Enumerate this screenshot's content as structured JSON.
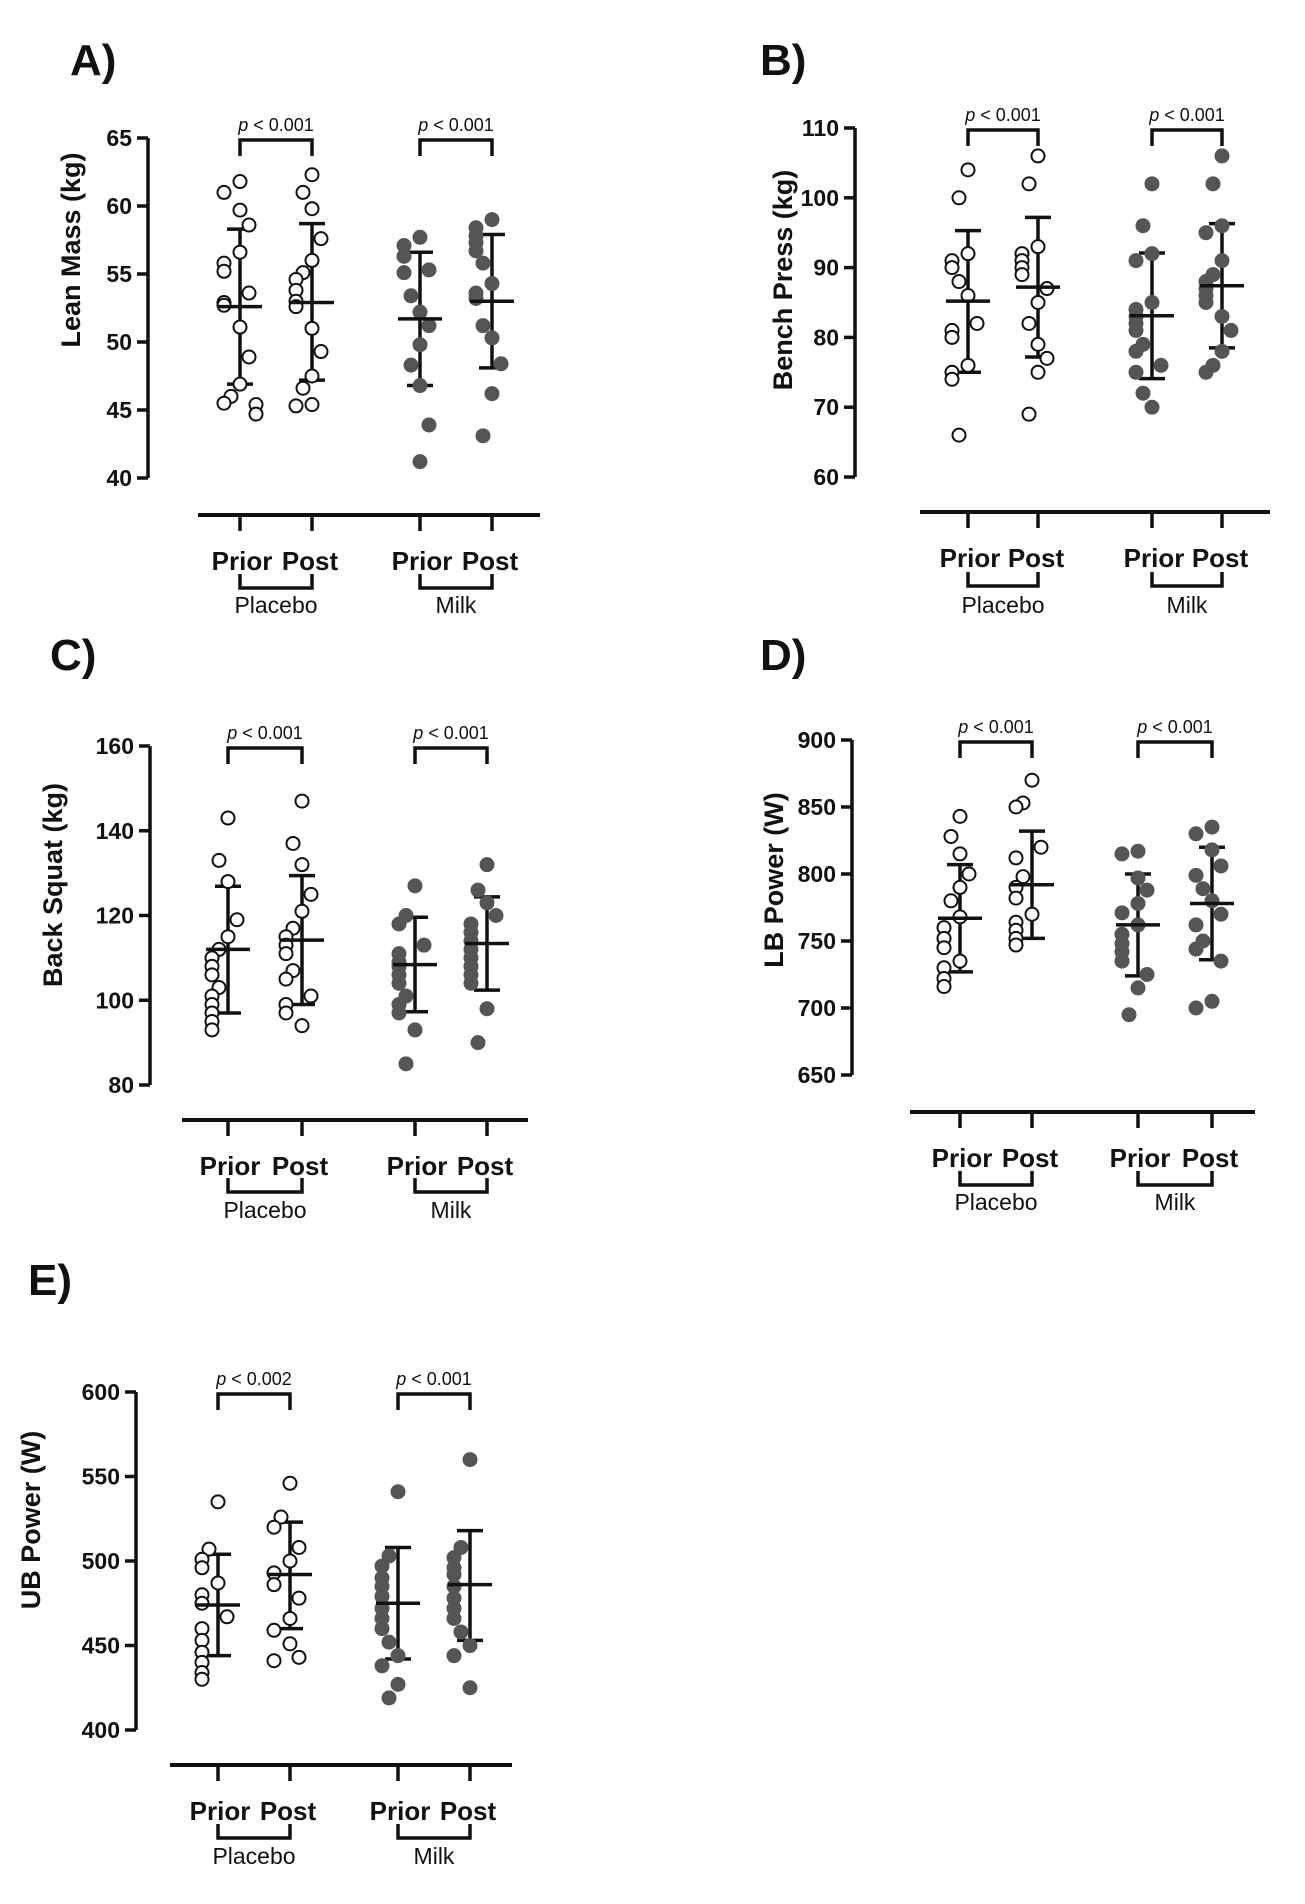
{
  "figure": {
    "condition_labels": [
      "Prior",
      "Post"
    ],
    "treatment_labels": [
      "Placebo",
      "Milk"
    ],
    "placebo_color": "#ffffff",
    "milk_color": "#555555",
    "stroke_color": "#111111"
  },
  "chart_data": [
    {
      "type": "scatter",
      "panel": "A)",
      "ylabel": "Lean Mass (kg)",
      "ylim": [
        40,
        65
      ],
      "yticks": [
        40,
        45,
        50,
        55,
        60,
        65
      ],
      "categories": [
        "Placebo Prior",
        "Placebo Post",
        "Milk Prior",
        "Milk Post"
      ],
      "comparisons": [
        {
          "group": "Placebo",
          "p": "p < 0.001"
        },
        {
          "group": "Milk",
          "p": "p < 0.001"
        }
      ],
      "series": [
        {
          "name": "Placebo Prior",
          "mean": 52.6,
          "sd_low": 46.9,
          "sd_high": 58.3,
          "values": [
            61.8,
            61.0,
            59.7,
            58.6,
            56.6,
            55.8,
            55.2,
            53.6,
            52.9,
            52.7,
            51.1,
            48.9,
            46.9,
            46.0,
            45.5,
            45.4,
            44.7
          ]
        },
        {
          "name": "Placebo Post",
          "mean": 52.9,
          "sd_low": 47.2,
          "sd_high": 58.7,
          "values": [
            62.3,
            61.0,
            59.8,
            57.6,
            56.0,
            55.1,
            54.6,
            53.8,
            53.0,
            52.6,
            51.0,
            49.3,
            47.5,
            46.6,
            45.4,
            45.3
          ]
        },
        {
          "name": "Milk Prior",
          "mean": 51.7,
          "sd_low": 46.8,
          "sd_high": 56.6,
          "values": [
            57.7,
            57.1,
            56.3,
            55.3,
            55.1,
            53.4,
            52.2,
            51.2,
            49.8,
            48.3,
            46.8,
            43.9,
            41.2
          ]
        },
        {
          "name": "Milk Post",
          "mean": 53.0,
          "sd_low": 48.1,
          "sd_high": 57.9,
          "values": [
            59.0,
            58.4,
            57.8,
            57.3,
            56.7,
            55.8,
            54.3,
            53.6,
            53.2,
            51.2,
            50.3,
            48.4,
            46.2,
            43.1
          ]
        }
      ]
    },
    {
      "type": "scatter",
      "panel": "B)",
      "ylabel": "Bench Press (kg)",
      "ylim": [
        60,
        110
      ],
      "yticks": [
        60,
        70,
        80,
        90,
        100,
        110
      ],
      "categories": [
        "Placebo Prior",
        "Placebo Post",
        "Milk Prior",
        "Milk Post"
      ],
      "comparisons": [
        {
          "group": "Placebo",
          "p": "p < 0.001"
        },
        {
          "group": "Milk",
          "p": "p < 0.001"
        }
      ],
      "series": [
        {
          "name": "Placebo Prior",
          "mean": 85.2,
          "sd_low": 75.0,
          "sd_high": 95.3,
          "values": [
            104,
            100,
            92,
            91,
            90,
            88,
            86,
            82,
            81,
            80,
            76,
            75,
            74,
            66
          ]
        },
        {
          "name": "Placebo Post",
          "mean": 87.2,
          "sd_low": 77.2,
          "sd_high": 97.2,
          "values": [
            106,
            102,
            93,
            92,
            91,
            90,
            89,
            87,
            85,
            82,
            79,
            77,
            75,
            69
          ]
        },
        {
          "name": "Milk Prior",
          "mean": 83.1,
          "sd_low": 74.1,
          "sd_high": 92.1,
          "values": [
            102,
            96,
            92,
            91,
            85,
            84,
            83,
            82,
            81,
            79,
            78,
            76,
            75,
            72,
            70
          ]
        },
        {
          "name": "Milk Post",
          "mean": 87.4,
          "sd_low": 78.5,
          "sd_high": 96.3,
          "values": [
            106,
            102,
            96,
            95,
            91,
            89,
            88,
            87,
            86,
            85,
            83,
            81,
            78,
            76,
            75
          ]
        }
      ]
    },
    {
      "type": "scatter",
      "panel": "C)",
      "ylabel": "Back Squat (kg)",
      "ylim": [
        80,
        160
      ],
      "yticks": [
        80,
        100,
        120,
        140,
        160
      ],
      "categories": [
        "Placebo Prior",
        "Placebo Post",
        "Milk Prior",
        "Milk Post"
      ],
      "comparisons": [
        {
          "group": "Placebo",
          "p": "p < 0.001"
        },
        {
          "group": "Milk",
          "p": "p < 0.001"
        }
      ],
      "series": [
        {
          "name": "Placebo Prior",
          "mean": 112.0,
          "sd_low": 97.0,
          "sd_high": 126.9,
          "values": [
            143,
            133,
            128,
            119,
            115,
            112,
            110,
            108,
            106,
            103,
            101,
            99,
            97,
            95,
            93
          ]
        },
        {
          "name": "Placebo Post",
          "mean": 114.2,
          "sd_low": 99.0,
          "sd_high": 129.4,
          "values": [
            147,
            137,
            132,
            125,
            121,
            117,
            115,
            113,
            111,
            107,
            105,
            101,
            99,
            97,
            94
          ]
        },
        {
          "name": "Milk Prior",
          "mean": 108.4,
          "sd_low": 97.3,
          "sd_high": 119.6,
          "values": [
            127,
            120,
            118,
            113,
            111,
            109,
            108,
            106,
            104,
            101,
            99,
            97,
            93,
            85
          ]
        },
        {
          "name": "Milk Post",
          "mean": 113.4,
          "sd_low": 102.4,
          "sd_high": 124.4,
          "values": [
            132,
            126,
            123,
            120,
            118,
            116,
            114,
            112,
            110,
            108,
            106,
            104,
            98,
            90
          ]
        }
      ]
    },
    {
      "type": "scatter",
      "panel": "D)",
      "ylabel": "LB Power (W)",
      "ylim": [
        650,
        900
      ],
      "yticks": [
        650,
        700,
        750,
        800,
        850,
        900
      ],
      "categories": [
        "Placebo Prior",
        "Placebo Post",
        "Milk Prior",
        "Milk Post"
      ],
      "comparisons": [
        {
          "group": "Placebo",
          "p": "p < 0.001"
        },
        {
          "group": "Milk",
          "p": "p < 0.001"
        }
      ],
      "series": [
        {
          "name": "Placebo Prior",
          "mean": 767,
          "sd_low": 727,
          "sd_high": 807,
          "values": [
            843,
            828,
            815,
            800,
            790,
            780,
            768,
            760,
            752,
            745,
            735,
            730,
            722,
            716
          ]
        },
        {
          "name": "Placebo Post",
          "mean": 792,
          "sd_low": 752,
          "sd_high": 832,
          "values": [
            870,
            853,
            850,
            820,
            812,
            798,
            790,
            782,
            770,
            764,
            758,
            752,
            747
          ]
        },
        {
          "name": "Milk Prior",
          "mean": 762,
          "sd_low": 724,
          "sd_high": 800,
          "values": [
            817,
            815,
            797,
            788,
            778,
            771,
            762,
            755,
            748,
            742,
            735,
            725,
            715,
            695
          ]
        },
        {
          "name": "Milk Post",
          "mean": 778,
          "sd_low": 736,
          "sd_high": 820,
          "values": [
            835,
            830,
            818,
            806,
            799,
            789,
            780,
            770,
            762,
            750,
            744,
            735,
            705,
            700
          ]
        }
      ]
    },
    {
      "type": "scatter",
      "panel": "E)",
      "ylabel": "UB Power (W)",
      "ylim": [
        400,
        600
      ],
      "yticks": [
        400,
        450,
        500,
        550,
        600
      ],
      "categories": [
        "Placebo Prior",
        "Placebo Post",
        "Milk Prior",
        "Milk Post"
      ],
      "comparisons": [
        {
          "group": "Placebo",
          "p": "p < 0.002"
        },
        {
          "group": "Milk",
          "p": "p < 0.001"
        }
      ],
      "series": [
        {
          "name": "Placebo Prior",
          "mean": 474,
          "sd_low": 444,
          "sd_high": 504,
          "values": [
            535,
            507,
            501,
            496,
            487,
            480,
            475,
            467,
            460,
            453,
            446,
            440,
            434,
            430
          ]
        },
        {
          "name": "Placebo Post",
          "mean": 492,
          "sd_low": 460,
          "sd_high": 523,
          "values": [
            546,
            526,
            520,
            508,
            500,
            493,
            486,
            478,
            466,
            459,
            451,
            443,
            441
          ]
        },
        {
          "name": "Milk Prior",
          "mean": 475,
          "sd_low": 442,
          "sd_high": 508,
          "values": [
            541,
            503,
            497,
            490,
            485,
            479,
            472,
            466,
            460,
            452,
            444,
            438,
            427,
            419
          ]
        },
        {
          "name": "Milk Post",
          "mean": 486,
          "sd_low": 453,
          "sd_high": 518,
          "values": [
            560,
            508,
            502,
            496,
            492,
            485,
            478,
            472,
            466,
            458,
            450,
            444,
            425
          ]
        }
      ]
    }
  ]
}
